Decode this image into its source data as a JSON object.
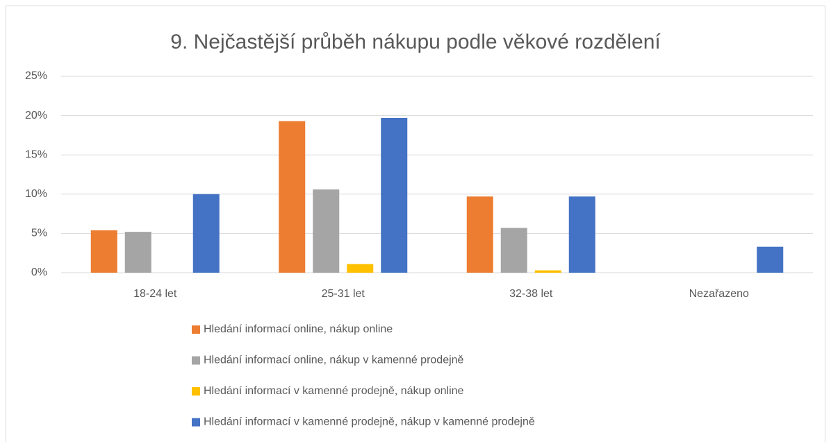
{
  "chart_data": {
    "type": "bar",
    "title": "9. Nejčastější průběh nákupu podle věkové rozdělení",
    "categories": [
      "18-24 let",
      "25-31 let",
      "32-38 let",
      "Nezařazeno"
    ],
    "series": [
      {
        "name": "Hledání informací online, nákup online",
        "color": "#ed7d31",
        "values": [
          5.4,
          19.3,
          9.7,
          0
        ]
      },
      {
        "name": "Hledání informací online, nákup v kamenné prodejně",
        "color": "#a5a5a5",
        "values": [
          5.2,
          10.6,
          5.7,
          0
        ]
      },
      {
        "name": "Hledání informací v kamenné prodejně, nákup online",
        "color": "#ffc000",
        "values": [
          0,
          1.1,
          0.3,
          0
        ]
      },
      {
        "name": "Hledání informací v kamenné prodejně, nákup v kamenné prodejně",
        "color": "#4472c4",
        "values": [
          10.0,
          19.7,
          9.7,
          3.3
        ]
      }
    ],
    "ylim": [
      0,
      25
    ],
    "yticks": [
      {
        "value": 0,
        "label": "0%"
      },
      {
        "value": 5,
        "label": "5%"
      },
      {
        "value": 10,
        "label": "10%"
      },
      {
        "value": 15,
        "label": "15%"
      },
      {
        "value": 20,
        "label": "20%"
      },
      {
        "value": 25,
        "label": "25%"
      }
    ],
    "grid": true
  }
}
